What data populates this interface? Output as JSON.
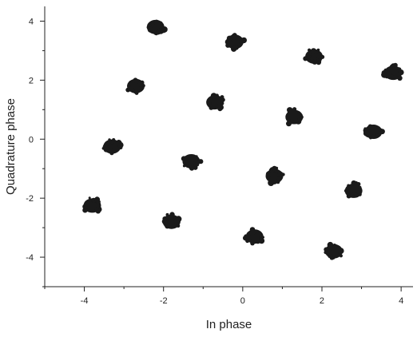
{
  "chart_data": {
    "type": "scatter",
    "title": "",
    "xlabel": "In phase",
    "ylabel": "Quadrature phase",
    "xlim": [
      -5,
      4.3
    ],
    "ylim": [
      -5,
      4.5
    ],
    "xticks": [
      -4,
      -2,
      0,
      2,
      4
    ],
    "yticks": [
      -4,
      -2,
      0,
      2,
      4
    ],
    "grid": false,
    "marker_color": "#1a1a1a",
    "points": [
      {
        "x": -2.2,
        "y": 3.8
      },
      {
        "x": -0.2,
        "y": 3.3
      },
      {
        "x": 1.8,
        "y": 2.8
      },
      {
        "x": 3.8,
        "y": 2.25
      },
      {
        "x": -2.7,
        "y": 1.8
      },
      {
        "x": -0.7,
        "y": 1.25
      },
      {
        "x": 1.3,
        "y": 0.75
      },
      {
        "x": 3.3,
        "y": 0.25
      },
      {
        "x": -3.3,
        "y": -0.25
      },
      {
        "x": -1.3,
        "y": -0.75
      },
      {
        "x": 0.8,
        "y": -1.25
      },
      {
        "x": 2.8,
        "y": -1.75
      },
      {
        "x": -3.8,
        "y": -2.25
      },
      {
        "x": -1.8,
        "y": -2.8
      },
      {
        "x": 0.3,
        "y": -3.3
      },
      {
        "x": 2.3,
        "y": -3.8
      }
    ]
  }
}
